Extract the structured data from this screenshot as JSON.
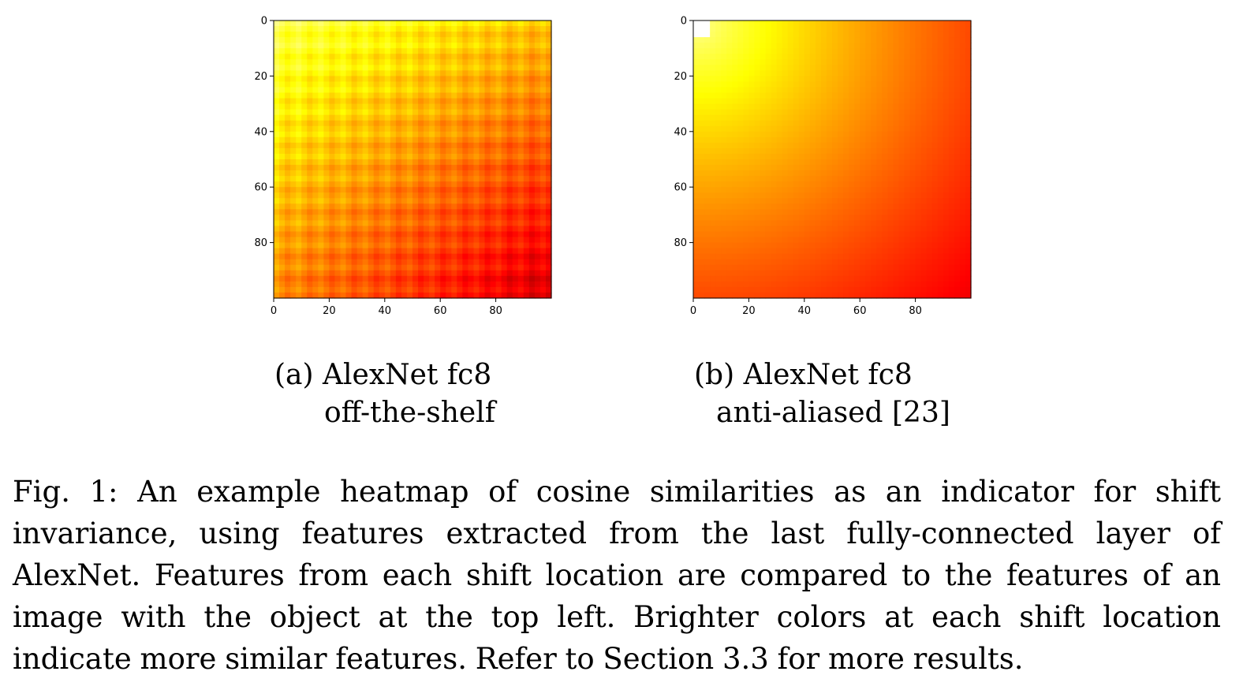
{
  "chart_data": [
    {
      "type": "heatmap",
      "title": "",
      "xlabel": "",
      "ylabel": "",
      "xlim": [
        0,
        99
      ],
      "ylim": [
        99,
        0
      ],
      "xticks": [
        "0",
        "20",
        "40",
        "60",
        "80"
      ],
      "yticks": [
        "0",
        "20",
        "40",
        "60",
        "80"
      ],
      "colormap": "hot",
      "pattern": "grid-periodic",
      "period": 8,
      "value_range": [
        0.35,
        0.82
      ],
      "description_value_top_left": 0.82,
      "description_value_bottom_right": 0.35
    },
    {
      "type": "heatmap",
      "title": "",
      "xlabel": "",
      "ylabel": "",
      "xlim": [
        0,
        99
      ],
      "ylim": [
        99,
        0
      ],
      "xticks": [
        "0",
        "20",
        "40",
        "60",
        "80"
      ],
      "yticks": [
        "0",
        "20",
        "40",
        "60",
        "80"
      ],
      "colormap": "hot",
      "pattern": "smooth",
      "value_range": [
        0.35,
        1.0
      ],
      "description_value_top_left": 1.0,
      "description_value_bottom_right": 0.35
    }
  ],
  "subcaptions": {
    "a_line1": "(a) AlexNet fc8",
    "a_line2": "off-the-shelf",
    "b_line1": "(b) AlexNet fc8",
    "b_line2": "anti-aliased [23]"
  },
  "caption": "Fig. 1: An example heatmap of cosine similarities as an indicator for shift invariance, using features extracted from the last fully-connected layer of AlexNet. Features from each shift location are compared to the features of an image with the object at the top left. Brighter colors at each shift location indicate more similar features. Refer to Section 3.3 for more results."
}
